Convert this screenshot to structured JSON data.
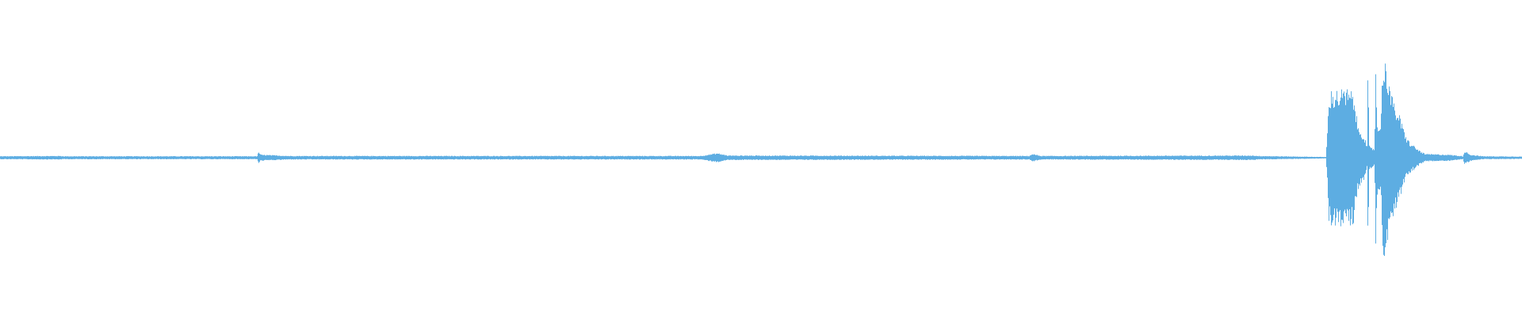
{
  "chart_data": {
    "type": "waveform",
    "title": "",
    "xlabel": "",
    "ylabel": "",
    "ylim": [
      -1,
      1
    ],
    "grid": false,
    "color": "#5dade2",
    "background": "#ffffff",
    "envelope_t_percent_amplitude": [
      [
        0,
        0.01
      ],
      [
        3.9,
        0.012
      ],
      [
        4.2,
        0.01
      ],
      [
        16.9,
        0.01
      ],
      [
        16.95,
        0.045
      ],
      [
        17.1,
        0.02
      ],
      [
        19,
        0.012
      ],
      [
        37,
        0.012
      ],
      [
        46.0,
        0.012
      ],
      [
        47.1,
        0.03
      ],
      [
        47.8,
        0.015
      ],
      [
        67.6,
        0.012
      ],
      [
        67.8,
        0.025
      ],
      [
        68.4,
        0.012
      ],
      [
        82.4,
        0.015
      ],
      [
        82.6,
        0.012
      ],
      [
        87.1,
        0.005
      ],
      [
        87.25,
        0.3
      ],
      [
        87.3,
        0.43
      ],
      [
        88.5,
        0.44
      ],
      [
        88.9,
        0.42
      ],
      [
        89.2,
        0.2
      ],
      [
        89.6,
        0.15
      ],
      [
        89.8,
        0.07
      ],
      [
        89.85,
        0.55
      ],
      [
        89.95,
        0.07
      ],
      [
        90.3,
        0.06
      ],
      [
        90.35,
        0.67
      ],
      [
        90.45,
        0.25
      ],
      [
        90.7,
        0.18
      ],
      [
        90.8,
        0.64
      ],
      [
        91.1,
        0.6
      ],
      [
        91.4,
        0.4
      ],
      [
        91.9,
        0.28
      ],
      [
        92.3,
        0.15
      ],
      [
        92.6,
        0.1
      ],
      [
        93.2,
        0.05
      ],
      [
        93.6,
        0.025
      ],
      [
        95.2,
        0.02
      ],
      [
        96.1,
        0.01
      ],
      [
        96.2,
        0.045
      ],
      [
        96.6,
        0.02
      ],
      [
        97.4,
        0.01
      ],
      [
        100,
        0.008
      ]
    ]
  }
}
